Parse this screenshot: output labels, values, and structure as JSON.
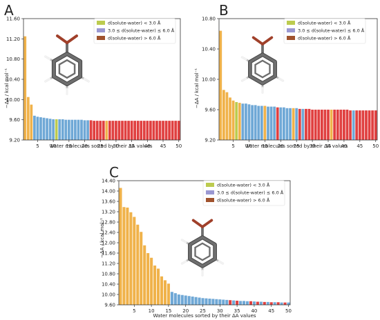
{
  "legend": {
    "entries": [
      {
        "label": "d(solute-water) < 3.0 Å",
        "color": "#bccb4f"
      },
      {
        "label": "3.0 ≤ d(solute-water) ≤ 6.0 Å",
        "color": "#9a98d2"
      },
      {
        "label": "d(solute-water) > 6.0 Å",
        "color": "#a0522d"
      }
    ]
  },
  "colors": {
    "orange": "#f0b24a",
    "blue": "#6fa8d6",
    "red": "#e04040",
    "green": "#bccb4f"
  },
  "chart_data": [
    {
      "type": "bar",
      "panel_label": "A",
      "xlabel": "Water molecules sorted by their ΔA values",
      "ylabel": "−ΔA / kcal mol⁻¹",
      "ylim": [
        9.2,
        11.6
      ],
      "yticks": [
        "9.20",
        "9.60",
        "10.00",
        "10.40",
        "10.80",
        "11.20",
        "11.60"
      ],
      "xticks": [
        "5",
        "10",
        "15",
        "20",
        "25",
        "30",
        "35",
        "40",
        "45",
        "50"
      ],
      "legend_position": "top-right",
      "x": [
        1,
        2,
        3,
        4,
        5,
        6,
        7,
        8,
        9,
        10,
        11,
        12,
        13,
        14,
        15,
        16,
        17,
        18,
        19,
        20,
        21,
        22,
        23,
        24,
        25,
        26,
        27,
        28,
        29,
        30,
        31,
        32,
        33,
        34,
        35,
        36,
        37,
        38,
        39,
        40,
        41,
        42,
        43,
        44,
        45,
        46,
        47,
        48,
        49,
        50
      ],
      "values": [
        11.25,
        10.05,
        9.9,
        9.68,
        9.66,
        9.65,
        9.64,
        9.63,
        9.62,
        9.61,
        9.61,
        9.61,
        9.61,
        9.6,
        9.6,
        9.6,
        9.6,
        9.6,
        9.6,
        9.59,
        9.59,
        9.59,
        9.58,
        9.58,
        9.58,
        9.58,
        9.58,
        9.58,
        9.58,
        9.58,
        9.58,
        9.58,
        9.58,
        9.58,
        9.58,
        9.58,
        9.58,
        9.58,
        9.58,
        9.58,
        9.58,
        9.58,
        9.58,
        9.58,
        9.58,
        9.58,
        9.58,
        9.58,
        9.58,
        9.58
      ],
      "bar_colors": [
        "orange",
        "orange",
        "orange",
        "blue",
        "blue",
        "blue",
        "blue",
        "blue",
        "blue",
        "blue",
        "green",
        "blue",
        "blue",
        "blue",
        "blue",
        "blue",
        "blue",
        "blue",
        "blue",
        "blue",
        "blue",
        "red",
        "red",
        "red",
        "red",
        "red",
        "orange",
        "red",
        "red",
        "red",
        "red",
        "red",
        "red",
        "red",
        "red",
        "red",
        "red",
        "red",
        "red",
        "red",
        "red",
        "red",
        "red",
        "red",
        "red",
        "red",
        "red",
        "red",
        "red",
        "red"
      ]
    },
    {
      "type": "bar",
      "panel_label": "B",
      "xlabel": "Water molecules sorted by their ΔA values",
      "ylabel": "−ΔA / kcal mol⁻¹",
      "ylim": [
        9.2,
        10.8
      ],
      "yticks": [
        "9.20",
        "9.60",
        "10.00",
        "10.40",
        "10.80"
      ],
      "xticks": [
        "5",
        "10",
        "15",
        "20",
        "25",
        "30",
        "35",
        "40",
        "45",
        "50"
      ],
      "legend_position": "top-right",
      "x": [
        1,
        2,
        3,
        4,
        5,
        6,
        7,
        8,
        9,
        10,
        11,
        12,
        13,
        14,
        15,
        16,
        17,
        18,
        19,
        20,
        21,
        22,
        23,
        24,
        25,
        26,
        27,
        28,
        29,
        30,
        31,
        32,
        33,
        34,
        35,
        36,
        37,
        38,
        39,
        40,
        41,
        42,
        43,
        44,
        45,
        46,
        47,
        48,
        49,
        50
      ],
      "values": [
        10.64,
        9.86,
        9.83,
        9.76,
        9.72,
        9.7,
        9.69,
        9.68,
        9.68,
        9.67,
        9.66,
        9.66,
        9.65,
        9.65,
        9.65,
        9.64,
        9.64,
        9.64,
        9.63,
        9.63,
        9.63,
        9.62,
        9.62,
        9.62,
        9.62,
        9.61,
        9.61,
        9.61,
        9.61,
        9.6,
        9.6,
        9.6,
        9.6,
        9.6,
        9.6,
        9.6,
        9.6,
        9.6,
        9.6,
        9.6,
        9.6,
        9.59,
        9.59,
        9.59,
        9.59,
        9.59,
        9.59,
        9.59,
        9.59,
        9.59
      ],
      "bar_colors": [
        "orange",
        "orange",
        "orange",
        "orange",
        "orange",
        "green",
        "orange",
        "blue",
        "blue",
        "blue",
        "blue",
        "blue",
        "blue",
        "blue",
        "orange",
        "blue",
        "blue",
        "blue",
        "red",
        "blue",
        "blue",
        "blue",
        "blue",
        "orange",
        "blue",
        "red",
        "blue",
        "red",
        "red",
        "red",
        "red",
        "red",
        "red",
        "red",
        "red",
        "orange",
        "red",
        "red",
        "red",
        "red",
        "red",
        "red",
        "blue",
        "red",
        "red",
        "red",
        "red",
        "red",
        "red",
        "red"
      ]
    },
    {
      "type": "bar",
      "panel_label": "C",
      "xlabel": "Water molecules sorted by their ΔA values",
      "ylabel": "−ΔA / kcal mol⁻¹",
      "ylim": [
        9.6,
        14.4
      ],
      "yticks": [
        "9.60",
        "10.00",
        "10.40",
        "10.80",
        "11.20",
        "11.60",
        "12.00",
        "12.40",
        "12.80",
        "13.20",
        "13.60",
        "14.00",
        "14.40"
      ],
      "xticks": [
        "5",
        "10",
        "15",
        "20",
        "25",
        "30",
        "35",
        "40",
        "45",
        "50"
      ],
      "legend_position": "top-right",
      "x": [
        1,
        2,
        3,
        4,
        5,
        6,
        7,
        8,
        9,
        10,
        11,
        12,
        13,
        14,
        15,
        16,
        17,
        18,
        19,
        20,
        21,
        22,
        23,
        24,
        25,
        26,
        27,
        28,
        29,
        30,
        31,
        32,
        33,
        34,
        35,
        36,
        37,
        38,
        39,
        40,
        41,
        42,
        43,
        44,
        45,
        46,
        47,
        48,
        49,
        50
      ],
      "values": [
        14.12,
        13.38,
        13.36,
        13.18,
        13.0,
        12.7,
        12.42,
        11.9,
        11.6,
        11.42,
        11.12,
        11.0,
        10.7,
        10.55,
        10.42,
        10.1,
        10.05,
        10.0,
        9.98,
        9.96,
        9.94,
        9.92,
        9.9,
        9.88,
        9.86,
        9.85,
        9.84,
        9.83,
        9.82,
        9.81,
        9.8,
        9.79,
        9.78,
        9.77,
        9.76,
        9.75,
        9.75,
        9.74,
        9.74,
        9.73,
        9.72,
        9.72,
        9.71,
        9.71,
        9.7,
        9.7,
        9.7,
        9.69,
        9.69,
        9.69
      ],
      "bar_colors": [
        "orange",
        "orange",
        "orange",
        "orange",
        "orange",
        "orange",
        "orange",
        "orange",
        "orange",
        "orange",
        "orange",
        "orange",
        "orange",
        "orange",
        "orange",
        "blue",
        "blue",
        "blue",
        "blue",
        "blue",
        "blue",
        "blue",
        "blue",
        "blue",
        "blue",
        "blue",
        "blue",
        "blue",
        "blue",
        "blue",
        "blue",
        "blue",
        "red",
        "blue",
        "red",
        "blue",
        "blue",
        "blue",
        "red",
        "blue",
        "red",
        "blue",
        "red",
        "blue",
        "red",
        "blue",
        "red",
        "blue",
        "red",
        "blue"
      ]
    }
  ]
}
